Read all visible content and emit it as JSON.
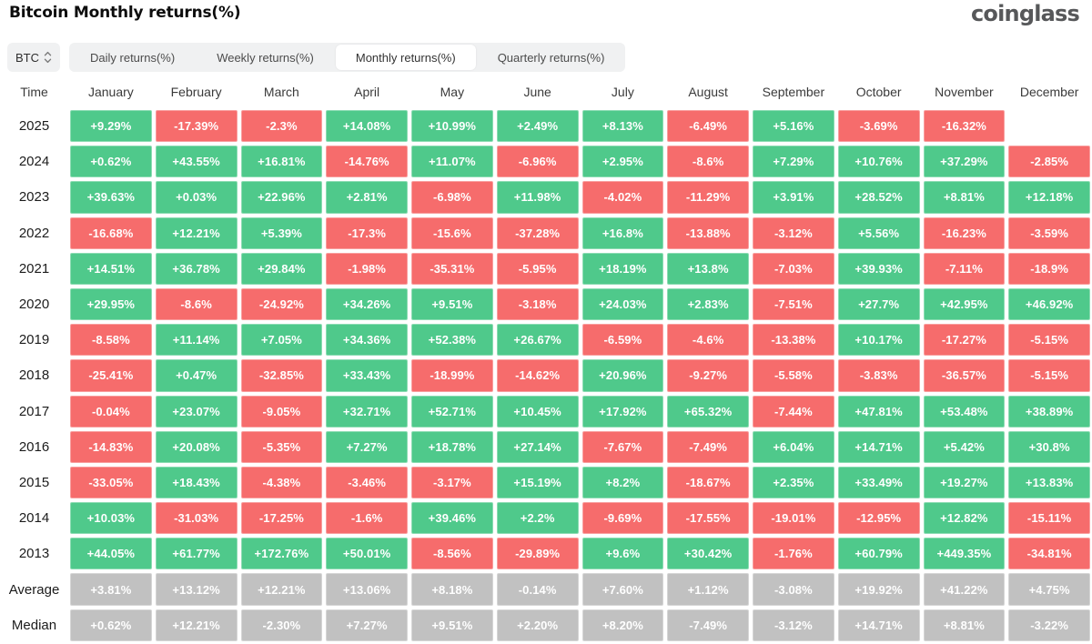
{
  "header": {
    "title": "Bitcoin Monthly returns(%)",
    "logo": "coinglass"
  },
  "controls": {
    "coin": "BTC",
    "tabs": [
      {
        "label": "Daily returns(%)",
        "active": false
      },
      {
        "label": "Weekly returns(%)",
        "active": false
      },
      {
        "label": "Monthly returns(%)",
        "active": true
      },
      {
        "label": "Quarterly returns(%)",
        "active": false
      }
    ]
  },
  "colors": {
    "positive": "#4fc98b",
    "negative": "#f66c6c",
    "neutral": "#c1c1c1",
    "chip_background": "#f0f1f2",
    "logo_gray": "#57585a"
  },
  "chart_data": {
    "type": "heatmap",
    "time_label": "Time",
    "columns": [
      "January",
      "February",
      "March",
      "April",
      "May",
      "June",
      "July",
      "August",
      "September",
      "October",
      "November",
      "December"
    ],
    "rows": [
      {
        "label": "2025",
        "type": "year",
        "values": [
          "+9.29%",
          "-17.39%",
          "-2.3%",
          "+14.08%",
          "+10.99%",
          "+2.49%",
          "+8.13%",
          "-6.49%",
          "+5.16%",
          "-3.69%",
          "-16.32%",
          ""
        ]
      },
      {
        "label": "2024",
        "type": "year",
        "values": [
          "+0.62%",
          "+43.55%",
          "+16.81%",
          "-14.76%",
          "+11.07%",
          "-6.96%",
          "+2.95%",
          "-8.6%",
          "+7.29%",
          "+10.76%",
          "+37.29%",
          "-2.85%"
        ]
      },
      {
        "label": "2023",
        "type": "year",
        "values": [
          "+39.63%",
          "+0.03%",
          "+22.96%",
          "+2.81%",
          "-6.98%",
          "+11.98%",
          "-4.02%",
          "-11.29%",
          "+3.91%",
          "+28.52%",
          "+8.81%",
          "+12.18%"
        ]
      },
      {
        "label": "2022",
        "type": "year",
        "values": [
          "-16.68%",
          "+12.21%",
          "+5.39%",
          "-17.3%",
          "-15.6%",
          "-37.28%",
          "+16.8%",
          "-13.88%",
          "-3.12%",
          "+5.56%",
          "-16.23%",
          "-3.59%"
        ]
      },
      {
        "label": "2021",
        "type": "year",
        "values": [
          "+14.51%",
          "+36.78%",
          "+29.84%",
          "-1.98%",
          "-35.31%",
          "-5.95%",
          "+18.19%",
          "+13.8%",
          "-7.03%",
          "+39.93%",
          "-7.11%",
          "-18.9%"
        ]
      },
      {
        "label": "2020",
        "type": "year",
        "values": [
          "+29.95%",
          "-8.6%",
          "-24.92%",
          "+34.26%",
          "+9.51%",
          "-3.18%",
          "+24.03%",
          "+2.83%",
          "-7.51%",
          "+27.7%",
          "+42.95%",
          "+46.92%"
        ]
      },
      {
        "label": "2019",
        "type": "year",
        "values": [
          "-8.58%",
          "+11.14%",
          "+7.05%",
          "+34.36%",
          "+52.38%",
          "+26.67%",
          "-6.59%",
          "-4.6%",
          "-13.38%",
          "+10.17%",
          "-17.27%",
          "-5.15%"
        ]
      },
      {
        "label": "2018",
        "type": "year",
        "values": [
          "-25.41%",
          "+0.47%",
          "-32.85%",
          "+33.43%",
          "-18.99%",
          "-14.62%",
          "+20.96%",
          "-9.27%",
          "-5.58%",
          "-3.83%",
          "-36.57%",
          "-5.15%"
        ]
      },
      {
        "label": "2017",
        "type": "year",
        "values": [
          "-0.04%",
          "+23.07%",
          "-9.05%",
          "+32.71%",
          "+52.71%",
          "+10.45%",
          "+17.92%",
          "+65.32%",
          "-7.44%",
          "+47.81%",
          "+53.48%",
          "+38.89%"
        ]
      },
      {
        "label": "2016",
        "type": "year",
        "values": [
          "-14.83%",
          "+20.08%",
          "-5.35%",
          "+7.27%",
          "+18.78%",
          "+27.14%",
          "-7.67%",
          "-7.49%",
          "+6.04%",
          "+14.71%",
          "+5.42%",
          "+30.8%"
        ]
      },
      {
        "label": "2015",
        "type": "year",
        "values": [
          "-33.05%",
          "+18.43%",
          "-4.38%",
          "-3.46%",
          "-3.17%",
          "+15.19%",
          "+8.2%",
          "-18.67%",
          "+2.35%",
          "+33.49%",
          "+19.27%",
          "+13.83%"
        ]
      },
      {
        "label": "2014",
        "type": "year",
        "values": [
          "+10.03%",
          "-31.03%",
          "-17.25%",
          "-1.6%",
          "+39.46%",
          "+2.2%",
          "-9.69%",
          "-17.55%",
          "-19.01%",
          "-12.95%",
          "+12.82%",
          "-15.11%"
        ]
      },
      {
        "label": "2013",
        "type": "year",
        "values": [
          "+44.05%",
          "+61.77%",
          "+172.76%",
          "+50.01%",
          "-8.56%",
          "-29.89%",
          "+9.6%",
          "+30.42%",
          "-1.76%",
          "+60.79%",
          "+449.35%",
          "-34.81%"
        ]
      },
      {
        "label": "Average",
        "type": "summary",
        "values": [
          "+3.81%",
          "+13.12%",
          "+12.21%",
          "+13.06%",
          "+8.18%",
          "-0.14%",
          "+7.60%",
          "+1.12%",
          "-3.08%",
          "+19.92%",
          "+41.22%",
          "+4.75%"
        ]
      },
      {
        "label": "Median",
        "type": "summary",
        "values": [
          "+0.62%",
          "+12.21%",
          "-2.30%",
          "+7.27%",
          "+9.51%",
          "+2.20%",
          "+8.20%",
          "-7.49%",
          "-3.12%",
          "+14.71%",
          "+8.81%",
          "-3.22%"
        ]
      }
    ]
  }
}
